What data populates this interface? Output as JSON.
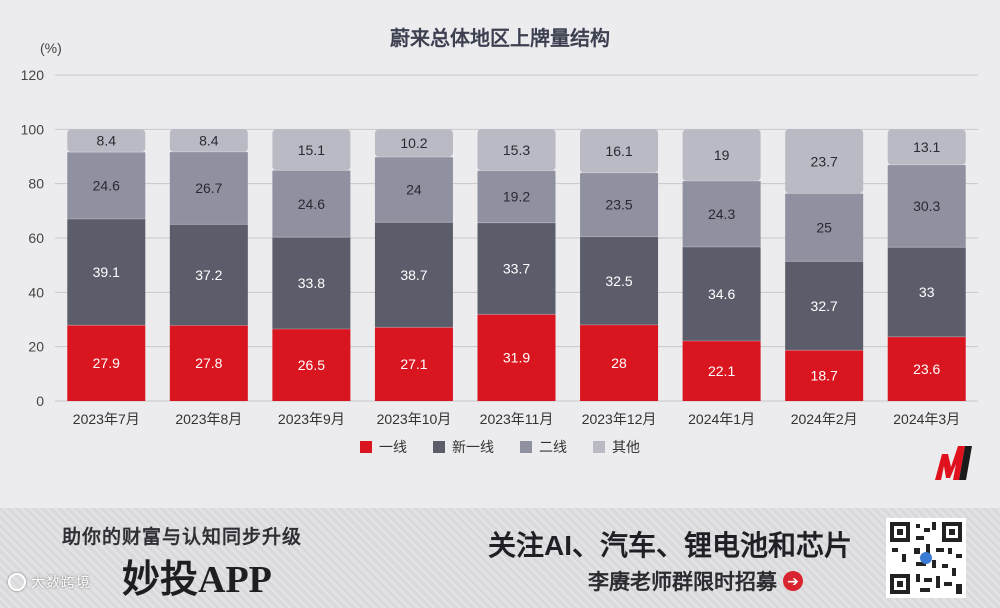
{
  "chart_data": {
    "type": "bar",
    "stacked": true,
    "title": "蔚来总体地区上牌量结构",
    "ylabel": "(%)",
    "xlabel": "",
    "ylim": [
      0,
      120
    ],
    "yticks": [
      0,
      20,
      40,
      60,
      80,
      100,
      120
    ],
    "grid": true,
    "legend_position": "bottom",
    "categories": [
      "2023年7月",
      "2023年8月",
      "2023年9月",
      "2023年10月",
      "2023年11月",
      "2023年12月",
      "2024年1月",
      "2024年2月",
      "2024年3月"
    ],
    "series": [
      {
        "name": "一线",
        "color": "#d9151f",
        "values": [
          27.9,
          27.8,
          26.5,
          27.1,
          31.9,
          28,
          22.1,
          18.7,
          23.6
        ]
      },
      {
        "name": "新一线",
        "color": "#5b5d6b",
        "values": [
          39.1,
          37.2,
          33.8,
          38.7,
          33.7,
          32.5,
          34.6,
          32.7,
          33
        ]
      },
      {
        "name": "二线",
        "color": "#8f91a0",
        "values": [
          24.6,
          26.7,
          24.6,
          24,
          19.2,
          23.5,
          24.3,
          25,
          30.3
        ]
      },
      {
        "name": "其他",
        "color": "#b9bac3",
        "values": [
          8.4,
          8.4,
          15.1,
          10.2,
          15.3,
          16.1,
          19,
          23.7,
          13.1
        ]
      }
    ]
  },
  "banner": {
    "slogan": "助你的财富与认知同步升级",
    "app_name": "妙投APP",
    "focus": "关注AI、汽车、锂电池和芯片",
    "recruit": "李赓老师群限时招募"
  },
  "watermark": "大数跨境"
}
